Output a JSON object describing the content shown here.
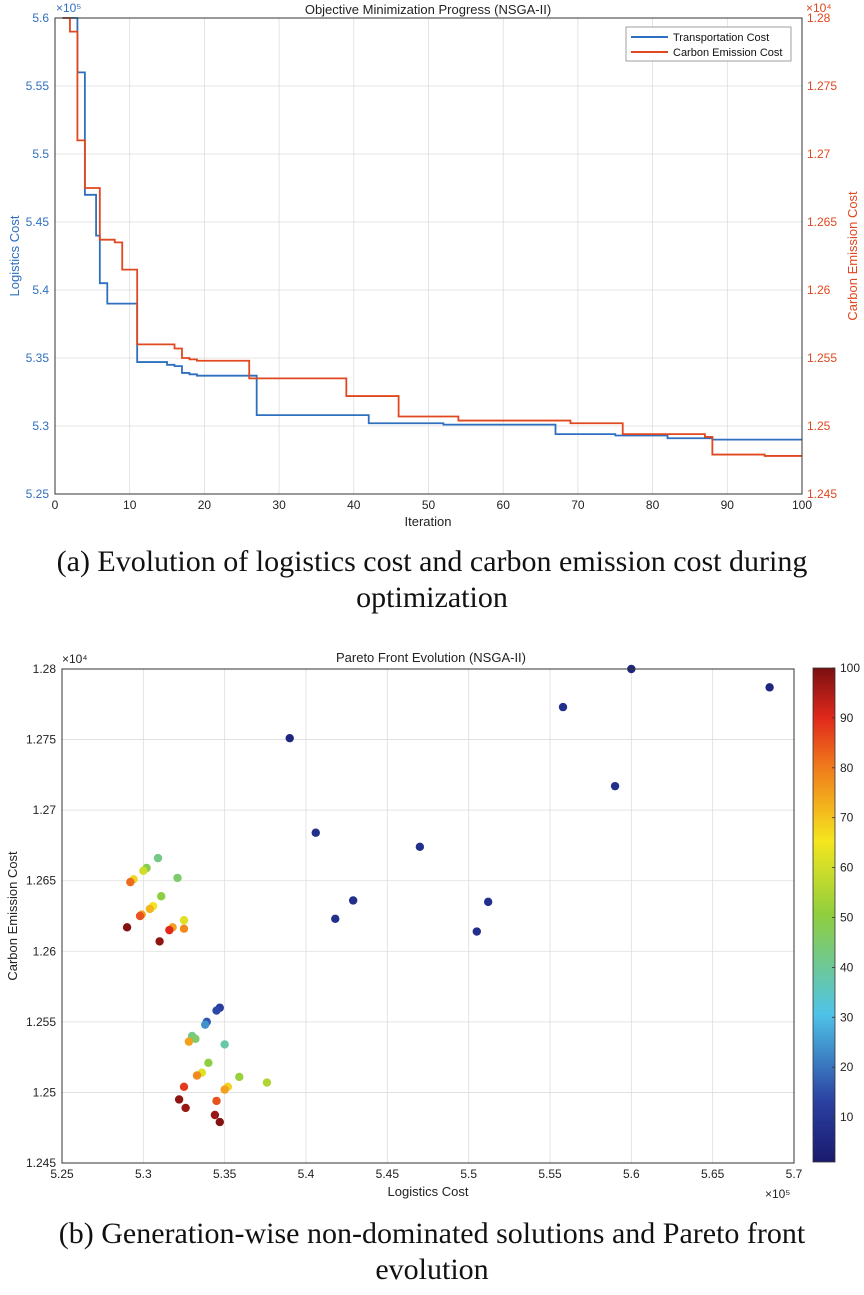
{
  "colors": {
    "transport": "#2f6fbf",
    "carbon": "#e0481f",
    "axis": "#333333",
    "grid": "#dddddd"
  },
  "captions": {
    "a": "(a) Evolution of logistics cost and carbon emission cost during optimization",
    "b": "(b) Generation-wise non-dominated solutions and Pareto front evolution"
  },
  "chart_data": [
    {
      "type": "line",
      "title": "Objective Minimization Progress (NSGA-II)",
      "xlabel": "Iteration",
      "ylabel_left": "Logistics Cost",
      "ylabel_right": "Carbon Emission Cost",
      "left_exponent": "×10⁵",
      "right_exponent": "×10⁴",
      "xlim": [
        0,
        100
      ],
      "ylim_left": [
        5.25,
        5.6
      ],
      "ylim_right": [
        1.245,
        1.28
      ],
      "xticks": [
        "0",
        "10",
        "20",
        "30",
        "40",
        "50",
        "60",
        "70",
        "80",
        "90",
        "100"
      ],
      "yticks_left": [
        "5.25",
        "5.3",
        "5.35",
        "5.4",
        "5.45",
        "5.5",
        "5.55",
        "5.6"
      ],
      "yticks_right": [
        "1.245",
        "1.25",
        "1.255",
        "1.26",
        "1.265",
        "1.27",
        "1.275",
        "1.28"
      ],
      "legend": [
        "Transportation Cost",
        "Carbon Emission Cost"
      ],
      "legend_position": "top-right",
      "grid": true,
      "series": [
        {
          "name": "Transportation Cost",
          "axis": "left",
          "x": [
            1,
            2,
            3,
            4,
            5,
            5.5,
            6,
            7,
            10,
            11,
            15,
            16,
            17,
            18,
            19,
            26,
            27,
            41,
            42,
            50,
            52,
            66,
            67,
            74,
            75,
            81,
            82,
            86,
            88,
            100
          ],
          "y": [
            5.6,
            5.6,
            5.56,
            5.47,
            5.47,
            5.44,
            5.405,
            5.39,
            5.39,
            5.347,
            5.345,
            5.344,
            5.339,
            5.338,
            5.337,
            5.337,
            5.308,
            5.308,
            5.302,
            5.302,
            5.301,
            5.301,
            5.294,
            5.294,
            5.293,
            5.293,
            5.291,
            5.291,
            5.29,
            5.29
          ]
        },
        {
          "name": "Carbon Emission Cost",
          "axis": "right",
          "x": [
            1,
            2,
            3,
            4,
            5,
            6,
            7,
            8,
            9,
            10,
            11,
            15,
            16,
            17,
            18,
            19,
            25,
            26,
            38,
            39,
            45,
            46,
            53,
            54,
            68,
            69,
            75,
            76,
            86,
            87,
            88,
            95,
            100
          ],
          "y": [
            1.28,
            1.279,
            1.271,
            1.2675,
            1.2675,
            1.2637,
            1.2637,
            1.2635,
            1.2615,
            1.2615,
            1.256,
            1.256,
            1.2557,
            1.255,
            1.2549,
            1.2548,
            1.2548,
            1.2535,
            1.2535,
            1.2522,
            1.2522,
            1.2507,
            1.2507,
            1.2504,
            1.2504,
            1.2502,
            1.2502,
            1.2494,
            1.2494,
            1.2492,
            1.2479,
            1.2478,
            1.2478
          ]
        }
      ]
    },
    {
      "type": "scatter",
      "title": "Pareto Front Evolution (NSGA-II)",
      "xlabel": "Logistics Cost",
      "ylabel": "Carbon Emission Cost",
      "x_exponent": "×10⁵",
      "y_exponent": "×10⁴",
      "xlim": [
        5.25,
        5.7
      ],
      "ylim": [
        1.245,
        1.28
      ],
      "xticks": [
        "5.25",
        "5.3",
        "5.35",
        "5.4",
        "5.45",
        "5.5",
        "5.55",
        "5.6",
        "5.65",
        "5.7"
      ],
      "yticks": [
        "1.245",
        "1.25",
        "1.255",
        "1.26",
        "1.265",
        "1.27",
        "1.275",
        "1.28"
      ],
      "colorbar": {
        "range": [
          1,
          100
        ],
        "ticks": [
          "10",
          "20",
          "30",
          "40",
          "50",
          "60",
          "70",
          "80",
          "90",
          "100"
        ]
      },
      "grid": true,
      "points": [
        [
          5.6,
          1.28,
          5
        ],
        [
          5.685,
          1.2787,
          5
        ],
        [
          5.558,
          1.2773,
          8
        ],
        [
          5.59,
          1.2717,
          8
        ],
        [
          5.39,
          1.2751,
          5
        ],
        [
          5.406,
          1.2684,
          8
        ],
        [
          5.47,
          1.2674,
          8
        ],
        [
          5.429,
          1.2636,
          8
        ],
        [
          5.418,
          1.2623,
          8
        ],
        [
          5.512,
          1.2635,
          8
        ],
        [
          5.505,
          1.2614,
          8
        ],
        [
          5.347,
          1.256,
          12
        ],
        [
          5.345,
          1.2558,
          14
        ],
        [
          5.339,
          1.255,
          16
        ],
        [
          5.338,
          1.2548,
          24
        ],
        [
          5.35,
          1.2534,
          38
        ],
        [
          5.33,
          1.254,
          42
        ],
        [
          5.332,
          1.2538,
          45
        ],
        [
          5.328,
          1.2536,
          75
        ],
        [
          5.34,
          1.2521,
          50
        ],
        [
          5.336,
          1.2514,
          62
        ],
        [
          5.333,
          1.2512,
          78
        ],
        [
          5.359,
          1.2511,
          52
        ],
        [
          5.376,
          1.2507,
          55
        ],
        [
          5.352,
          1.2504,
          68
        ],
        [
          5.35,
          1.2502,
          75
        ],
        [
          5.325,
          1.2504,
          88
        ],
        [
          5.345,
          1.2494,
          85
        ],
        [
          5.322,
          1.2495,
          98
        ],
        [
          5.326,
          1.2489,
          97
        ],
        [
          5.344,
          1.2484,
          97
        ],
        [
          5.347,
          1.2479,
          99
        ],
        [
          5.309,
          1.2666,
          42
        ],
        [
          5.302,
          1.2659,
          48
        ],
        [
          5.3,
          1.2657,
          60
        ],
        [
          5.294,
          1.2651,
          68
        ],
        [
          5.292,
          1.2649,
          82
        ],
        [
          5.321,
          1.2652,
          45
        ],
        [
          5.311,
          1.2639,
          50
        ],
        [
          5.306,
          1.2632,
          65
        ],
        [
          5.304,
          1.263,
          72
        ],
        [
          5.299,
          1.2626,
          75
        ],
        [
          5.298,
          1.2625,
          85
        ],
        [
          5.325,
          1.2622,
          62
        ],
        [
          5.318,
          1.2617,
          75
        ],
        [
          5.325,
          1.2616,
          78
        ],
        [
          5.316,
          1.2615,
          90
        ],
        [
          5.29,
          1.2617,
          99
        ],
        [
          5.31,
          1.2607,
          98
        ]
      ]
    }
  ]
}
